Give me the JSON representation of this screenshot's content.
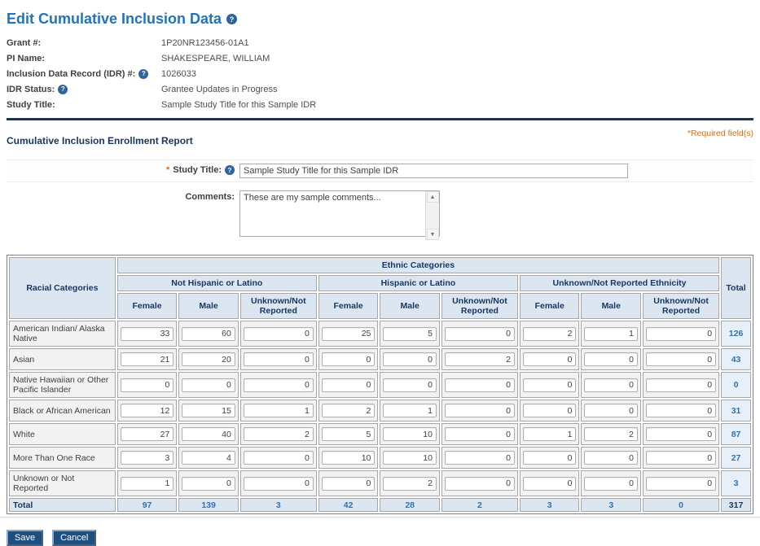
{
  "icons": {
    "help": "?",
    "scroll_up": "▲",
    "scroll_down": "▼"
  },
  "colors": {
    "title_blue": "#1F74BD",
    "navy": "#17365D",
    "table_header_bg": "#DCE6F1",
    "required_orange": "#E36C0A",
    "total_blue": "#2E74B5",
    "button_bg": "#1D4F80"
  },
  "page": {
    "title": "Edit Cumulative Inclusion Data",
    "required_note": "*Required field(s)"
  },
  "info": {
    "rows": [
      {
        "label": "Grant #:",
        "value": "1P20NR123456-01A1"
      },
      {
        "label": "PI Name:",
        "value": "SHAKESPEARE, WILLIAM"
      },
      {
        "label": "Inclusion Data Record (IDR) #:",
        "value": "1026033"
      },
      {
        "label": "IDR Status:",
        "value": "Grantee Updates in Progress"
      },
      {
        "label": "Study Title:",
        "value": "Sample Study Title for this Sample IDR"
      }
    ]
  },
  "section": {
    "heading": "Cumulative Inclusion Enrollment Report"
  },
  "form": {
    "study_title": {
      "required_mark": "*",
      "label": "Study Title:",
      "value": "Sample Study Title for this Sample IDR"
    },
    "comments": {
      "label": "Comments:",
      "value": "These are my sample comments..."
    }
  },
  "table": {
    "corner_header": "Racial Categories",
    "ethnic_header": "Ethnic Categories",
    "total_header": "Total",
    "group_headers": [
      "Not Hispanic or Latino",
      "Hispanic or Latino",
      "Unknown/Not Reported Ethnicity"
    ],
    "sub_headers": [
      "Female",
      "Male",
      "Unknown/Not Reported"
    ],
    "rows": [
      {
        "label": "American Indian/ Alaska Native",
        "values": [
          33,
          60,
          0,
          25,
          5,
          0,
          2,
          1,
          0
        ],
        "total": 126
      },
      {
        "label": "Asian",
        "values": [
          21,
          20,
          0,
          0,
          0,
          2,
          0,
          0,
          0
        ],
        "total": 43
      },
      {
        "label": "Native Hawaiian or Other Pacific Islander",
        "values": [
          0,
          0,
          0,
          0,
          0,
          0,
          0,
          0,
          0
        ],
        "total": 0
      },
      {
        "label": "Black or African American",
        "values": [
          12,
          15,
          1,
          2,
          1,
          0,
          0,
          0,
          0
        ],
        "total": 31
      },
      {
        "label": "White",
        "values": [
          27,
          40,
          2,
          5,
          10,
          0,
          1,
          2,
          0
        ],
        "total": 87
      },
      {
        "label": "More Than One Race",
        "values": [
          3,
          4,
          0,
          10,
          10,
          0,
          0,
          0,
          0
        ],
        "total": 27
      },
      {
        "label": "Unknown or Not Reported",
        "values": [
          1,
          0,
          0,
          0,
          2,
          0,
          0,
          0,
          0
        ],
        "total": 3
      }
    ],
    "totals_row": {
      "label": "Total",
      "values": [
        97,
        139,
        3,
        42,
        28,
        2,
        3,
        3,
        0
      ],
      "total": 317
    }
  },
  "buttons": {
    "save": "Save",
    "cancel": "Cancel"
  }
}
